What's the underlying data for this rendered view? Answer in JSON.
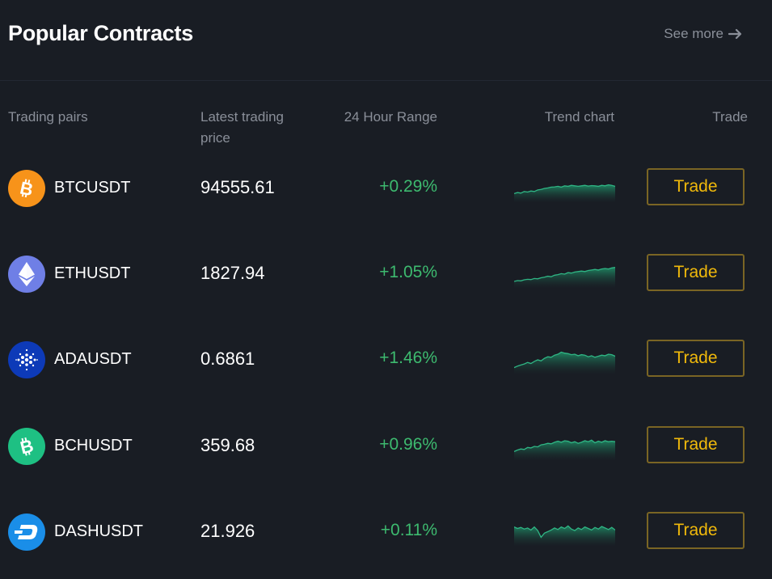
{
  "header": {
    "title": "Popular Contracts",
    "see_more": "See more"
  },
  "columns": {
    "pair": "Trading pairs",
    "price": "Latest trading price",
    "range": "24 Hour Range",
    "trend": "Trend chart",
    "trade": "Trade"
  },
  "colors": {
    "background": "#191d24",
    "positive": "#3dba6f",
    "accent": "#f0b90b",
    "chart_line": "#2fb584"
  },
  "rows": [
    {
      "pair": "BTCUSDT",
      "price": "94555.61",
      "change": "+0.29%",
      "trade_label": "Trade",
      "icon": "bitcoin-icon",
      "icon_color": "#f7931a",
      "trend": [
        0.3,
        0.34,
        0.32,
        0.38,
        0.36,
        0.4,
        0.38,
        0.44,
        0.46,
        0.5,
        0.52,
        0.55,
        0.56,
        0.58,
        0.55,
        0.6,
        0.58,
        0.62,
        0.6,
        0.58,
        0.6,
        0.62,
        0.59,
        0.61,
        0.6,
        0.58,
        0.62,
        0.6,
        0.64,
        0.62,
        0.58
      ]
    },
    {
      "pair": "ETHUSDT",
      "price": "1827.94",
      "change": "+1.05%",
      "trade_label": "Trade",
      "icon": "ethereum-icon",
      "icon_color": "#6f7fe6",
      "trend": [
        0.22,
        0.25,
        0.24,
        0.28,
        0.3,
        0.29,
        0.33,
        0.32,
        0.36,
        0.38,
        0.42,
        0.4,
        0.46,
        0.48,
        0.52,
        0.5,
        0.56,
        0.54,
        0.58,
        0.6,
        0.62,
        0.6,
        0.64,
        0.66,
        0.68,
        0.66,
        0.7,
        0.72,
        0.7,
        0.74,
        0.76
      ]
    },
    {
      "pair": "ADAUSDT",
      "price": "0.6861",
      "change": "+1.46%",
      "trade_label": "Trade",
      "icon": "cardano-icon",
      "icon_color": "#0d3ab8",
      "trend": [
        0.2,
        0.26,
        0.3,
        0.34,
        0.4,
        0.36,
        0.44,
        0.5,
        0.46,
        0.56,
        0.62,
        0.6,
        0.68,
        0.72,
        0.8,
        0.76,
        0.74,
        0.7,
        0.72,
        0.66,
        0.7,
        0.68,
        0.62,
        0.66,
        0.6,
        0.64,
        0.68,
        0.66,
        0.72,
        0.7,
        0.64
      ]
    },
    {
      "pair": "BCHUSDT",
      "price": "359.68",
      "change": "+0.96%",
      "trade_label": "Trade",
      "icon": "bitcoin-cash-icon",
      "icon_color": "#1ec083",
      "trend": [
        0.3,
        0.36,
        0.4,
        0.38,
        0.46,
        0.44,
        0.5,
        0.48,
        0.56,
        0.58,
        0.62,
        0.6,
        0.66,
        0.7,
        0.66,
        0.72,
        0.7,
        0.64,
        0.68,
        0.62,
        0.66,
        0.72,
        0.68,
        0.74,
        0.64,
        0.7,
        0.66,
        0.72,
        0.68,
        0.7,
        0.68
      ]
    },
    {
      "pair": "DASHUSDT",
      "price": "21.926",
      "change": "+0.11%",
      "trade_label": "Trade",
      "icon": "dash-icon",
      "icon_color": "#1a8ee8",
      "trend": [
        0.7,
        0.64,
        0.68,
        0.62,
        0.66,
        0.58,
        0.7,
        0.56,
        0.3,
        0.46,
        0.52,
        0.58,
        0.66,
        0.6,
        0.7,
        0.64,
        0.74,
        0.62,
        0.56,
        0.66,
        0.6,
        0.7,
        0.64,
        0.58,
        0.68,
        0.62,
        0.72,
        0.66,
        0.6,
        0.68,
        0.58
      ]
    }
  ]
}
